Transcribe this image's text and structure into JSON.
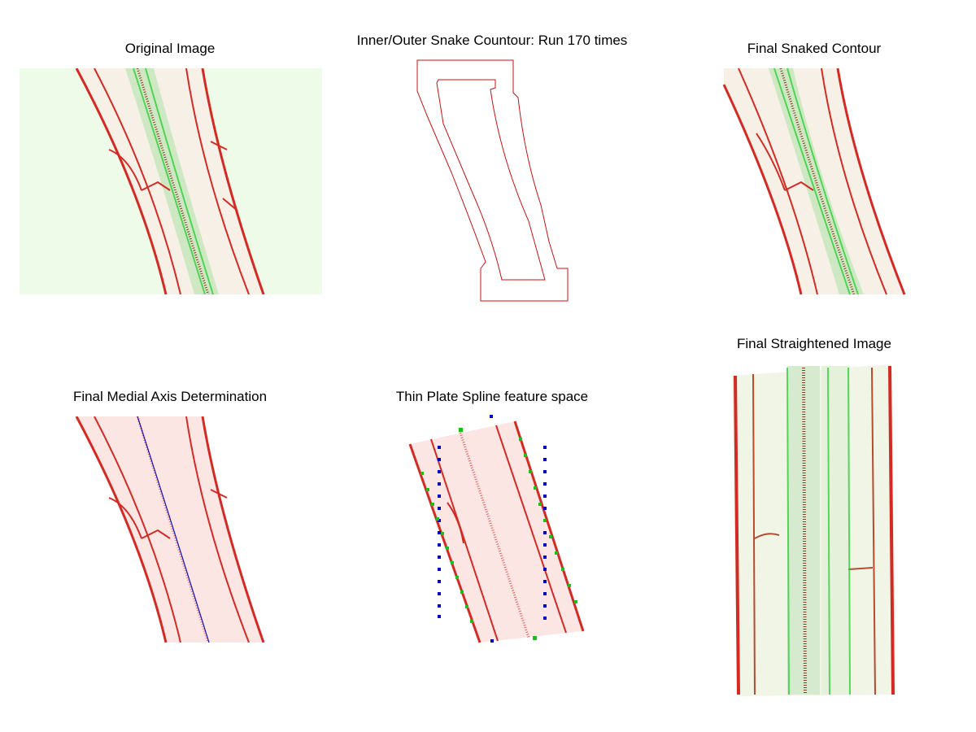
{
  "panels": [
    {
      "id": "original",
      "title": "Original Image"
    },
    {
      "id": "snake",
      "title": "Inner/Outer Snake Countour: Run 170 times"
    },
    {
      "id": "snaked",
      "title": "Final Snaked Contour"
    },
    {
      "id": "medial",
      "title": "Final Medial Axis Determination"
    },
    {
      "id": "tps",
      "title": "Thin Plate Spline feature space"
    },
    {
      "id": "straight",
      "title": "Final Straightened Image"
    }
  ],
  "colors": {
    "cell_wall_red": "#d42a24",
    "fluor_green": "#2fd03a",
    "bg_green_tint": "#eefbe8",
    "contour_red": "#cc1111",
    "medial_axis_blue": "#1010c0",
    "tps_source_points": "#0000c8",
    "tps_target_points": "#18c018"
  }
}
